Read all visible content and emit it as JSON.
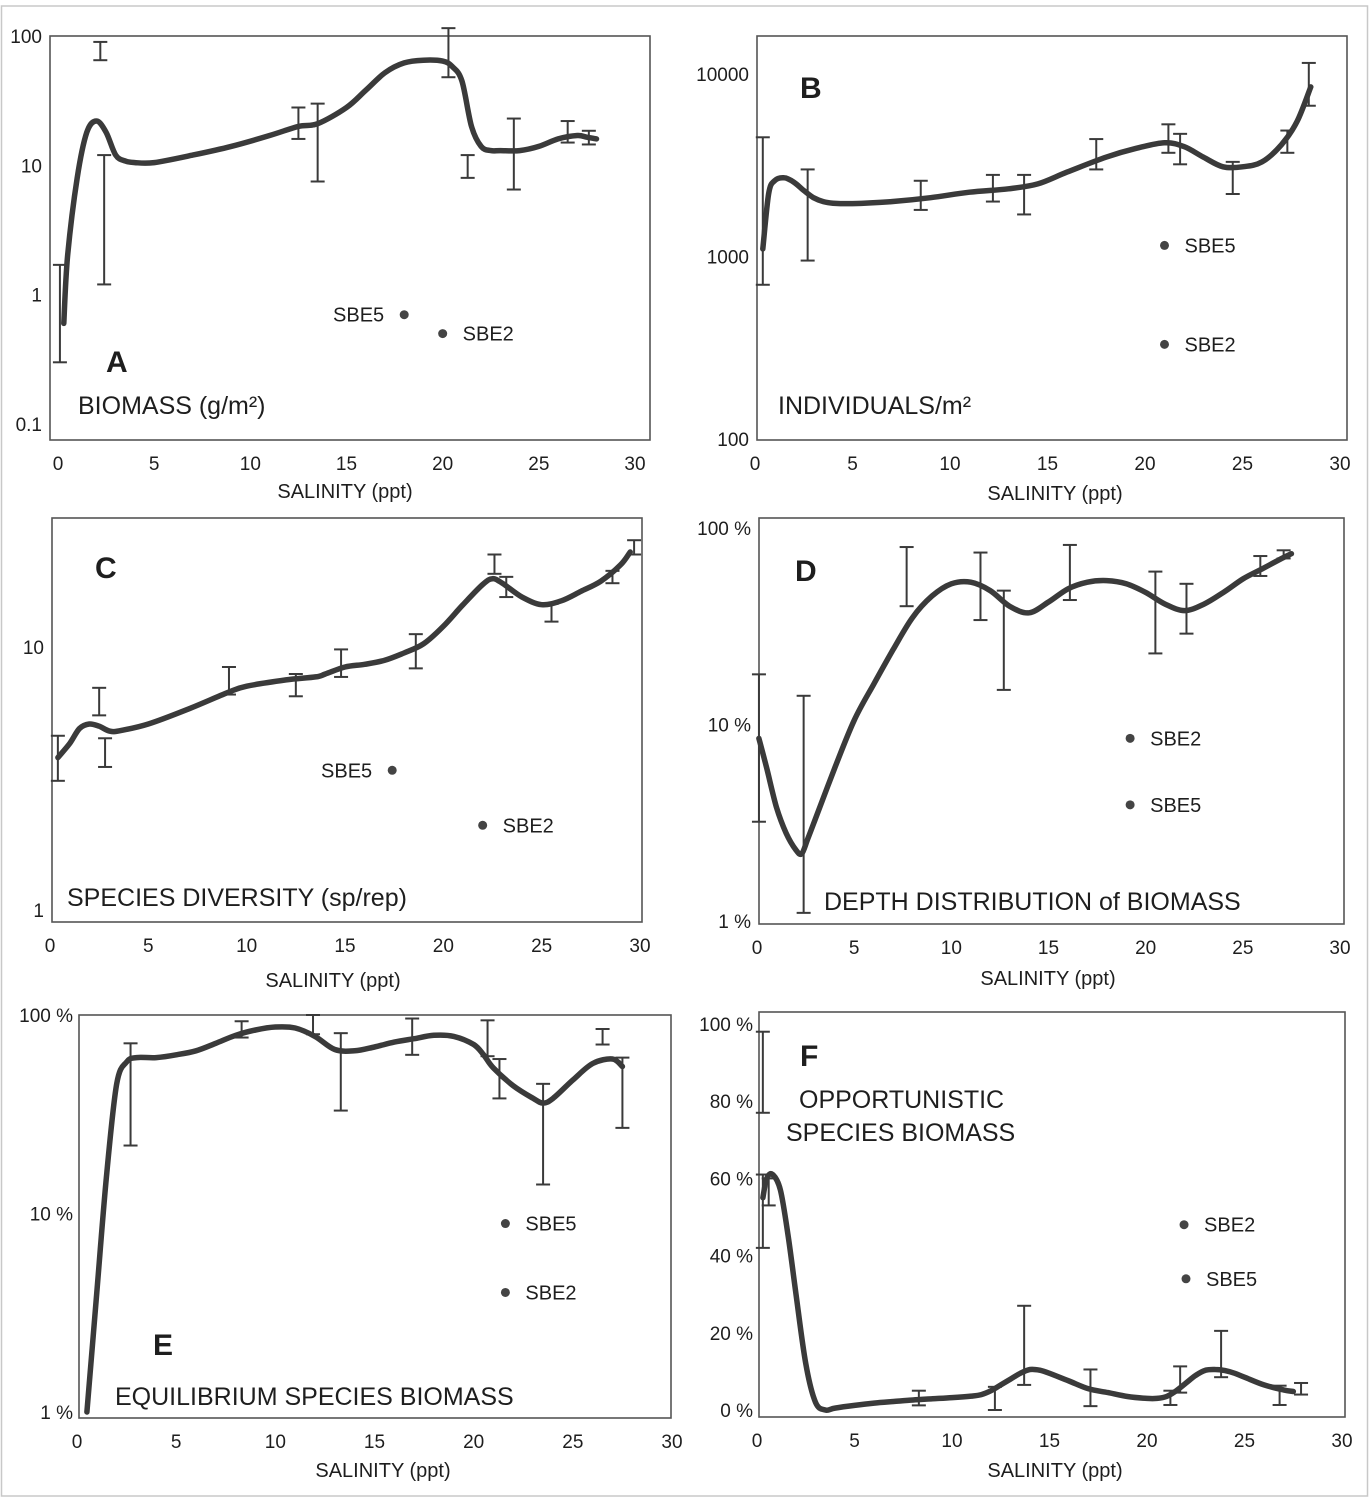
{
  "chart_data": [
    {
      "panel": "A",
      "type": "line",
      "title": "BIOMASS (g/m²)",
      "xlabel": "SALINITY (ppt)",
      "ylabel": "",
      "yscale": "log",
      "xlim": [
        0,
        30
      ],
      "ylim": [
        0.1,
        100
      ],
      "xticks": [
        0,
        5,
        10,
        15,
        20,
        25,
        30
      ],
      "yticks": [
        {
          "v": 0.1,
          "t": "0.1"
        },
        {
          "v": 1,
          "t": "1"
        },
        {
          "v": 10,
          "t": "10"
        },
        {
          "v": 100,
          "t": "100"
        }
      ],
      "curve": {
        "x": [
          0.3,
          0.5,
          1.0,
          1.5,
          2.0,
          2.5,
          3.0,
          3.5,
          4.0,
          5,
          7,
          9,
          11,
          12.5,
          13.5,
          15,
          16,
          17,
          18,
          19,
          20,
          20.5,
          21,
          21.5,
          22,
          22.5,
          23,
          24,
          25,
          26,
          27,
          27.5,
          28
        ],
        "y": [
          0.6,
          2.0,
          8.0,
          18,
          22,
          18,
          12,
          10.8,
          10.5,
          10.5,
          12,
          14,
          17,
          20,
          21,
          28,
          38,
          52,
          62,
          65,
          64,
          58,
          45,
          20,
          14,
          13,
          13,
          13,
          14,
          16,
          17,
          16.5,
          16
        ]
      },
      "error_bars": [
        {
          "x": 0.1,
          "low": 0.3,
          "high": 1.7
        },
        {
          "x": 2.2,
          "low": 65,
          "high": 90
        },
        {
          "x": 2.4,
          "low": 1.2,
          "high": 12
        },
        {
          "x": 12.5,
          "low": 16,
          "high": 28
        },
        {
          "x": 13.5,
          "low": 7.5,
          "high": 30
        },
        {
          "x": 20.3,
          "low": 48,
          "high": 115
        },
        {
          "x": 21.3,
          "low": 8,
          "high": 12
        },
        {
          "x": 23.7,
          "low": 6.5,
          "high": 23
        },
        {
          "x": 26.5,
          "low": 15,
          "high": 22
        },
        {
          "x": 27.6,
          "low": 14.5,
          "high": 18.5
        }
      ],
      "points": [
        {
          "label": "SBE5",
          "x": 18,
          "y": 0.7,
          "side": "left"
        },
        {
          "label": "SBE2",
          "x": 20,
          "y": 0.5,
          "side": "right"
        }
      ]
    },
    {
      "panel": "B",
      "type": "line",
      "title": "INDIVIDUALS/m²",
      "xlabel": "SALINITY (ppt)",
      "ylabel": "",
      "yscale": "log",
      "xlim": [
        0,
        30
      ],
      "ylim": [
        100,
        10000
      ],
      "xticks": [
        0,
        5,
        10,
        15,
        20,
        25,
        30
      ],
      "yticks": [
        {
          "v": 100,
          "t": "100"
        },
        {
          "v": 1000,
          "t": "1000"
        },
        {
          "v": 10000,
          "t": "10000"
        }
      ],
      "curve": {
        "x": [
          0.4,
          0.7,
          1.0,
          1.5,
          2.0,
          2.5,
          3.0,
          3.5,
          4,
          5,
          7,
          9,
          11,
          13,
          14.5,
          16,
          18,
          19.5,
          21,
          22,
          23,
          24,
          25,
          26,
          27,
          27.8,
          28.5
        ],
        "y": [
          1100,
          2200,
          2600,
          2700,
          2550,
          2300,
          2100,
          2000,
          1960,
          1950,
          2000,
          2100,
          2250,
          2350,
          2500,
          2900,
          3500,
          3900,
          4200,
          4000,
          3500,
          3100,
          3100,
          3300,
          4100,
          5500,
          8500
        ]
      },
      "error_bars": [
        {
          "x": 0.4,
          "low": 700,
          "high": 4500
        },
        {
          "x": 2.7,
          "low": 950,
          "high": 3000
        },
        {
          "x": 8.5,
          "low": 1800,
          "high": 2600
        },
        {
          "x": 12.2,
          "low": 2000,
          "high": 2800
        },
        {
          "x": 13.8,
          "low": 1700,
          "high": 2800
        },
        {
          "x": 17.5,
          "low": 3000,
          "high": 4400
        },
        {
          "x": 21.2,
          "low": 3700,
          "high": 5300
        },
        {
          "x": 21.8,
          "low": 3200,
          "high": 4700
        },
        {
          "x": 24.5,
          "low": 2200,
          "high": 3300
        },
        {
          "x": 27.3,
          "low": 3700,
          "high": 4900
        },
        {
          "x": 28.4,
          "low": 6700,
          "high": 11500
        }
      ],
      "points": [
        {
          "label": "SBE5",
          "x": 21,
          "y": 1150,
          "side": "right"
        },
        {
          "label": "SBE2",
          "x": 21,
          "y": 330,
          "side": "right"
        }
      ]
    },
    {
      "panel": "C",
      "type": "line",
      "title": "SPECIES DIVERSITY (sp/rep)",
      "xlabel": "SALINITY (ppt)",
      "ylabel": "",
      "yscale": "log",
      "xlim": [
        0,
        30
      ],
      "ylim": [
        1,
        26
      ],
      "xticks": [
        0,
        5,
        10,
        15,
        20,
        25,
        30
      ],
      "yticks": [
        {
          "v": 1,
          "t": "1"
        },
        {
          "v": 10,
          "t": "10"
        }
      ],
      "curve": {
        "x": [
          0.4,
          1.0,
          1.5,
          2.0,
          2.5,
          3.0,
          3.5,
          5,
          7,
          9,
          10,
          12,
          13.5,
          14,
          15,
          16,
          17,
          18,
          19,
          20,
          21,
          22,
          22.5,
          23,
          24,
          25,
          26,
          27,
          28,
          29,
          29.5
        ],
        "y": [
          3.8,
          4.3,
          4.9,
          5.1,
          5.0,
          4.8,
          4.8,
          5.1,
          5.8,
          6.7,
          7.1,
          7.5,
          7.7,
          7.9,
          8.4,
          8.6,
          8.9,
          9.5,
          10.3,
          12,
          14.5,
          17.3,
          18.2,
          17.5,
          15.5,
          14.5,
          15,
          16.3,
          17.8,
          20.5,
          23
        ]
      },
      "error_bars": [
        {
          "x": 0.4,
          "low": 3.1,
          "high": 4.6
        },
        {
          "x": 2.5,
          "low": 5.5,
          "high": 7.0
        },
        {
          "x": 2.8,
          "low": 3.5,
          "high": 4.5
        },
        {
          "x": 9.1,
          "low": 6.6,
          "high": 8.4
        },
        {
          "x": 12.5,
          "low": 6.5,
          "high": 7.9
        },
        {
          "x": 14.8,
          "low": 7.7,
          "high": 9.8
        },
        {
          "x": 18.6,
          "low": 8.3,
          "high": 11.2
        },
        {
          "x": 22.6,
          "low": 19,
          "high": 22.5
        },
        {
          "x": 23.2,
          "low": 15.5,
          "high": 18.5
        },
        {
          "x": 25.5,
          "low": 12.5,
          "high": 14.6
        },
        {
          "x": 28.6,
          "low": 17.5,
          "high": 19.5
        },
        {
          "x": 29.7,
          "low": 22.5,
          "high": 25.5
        }
      ],
      "points": [
        {
          "label": "SBE5",
          "x": 17.4,
          "y": 3.4,
          "side": "left"
        },
        {
          "label": "SBE2",
          "x": 22,
          "y": 2.1,
          "side": "right"
        }
      ]
    },
    {
      "panel": "D",
      "type": "line",
      "title": "DEPTH DISTRIBUTION of BIOMASS",
      "xlabel": "SALINITY (ppt)",
      "ylabel": "",
      "yscale": "log",
      "xlim": [
        0,
        30
      ],
      "ylim": [
        1,
        100
      ],
      "xticks": [
        0,
        5,
        10,
        15,
        20,
        25,
        30
      ],
      "yticks": [
        {
          "v": 1,
          "t": "1 %"
        },
        {
          "v": 10,
          "t": "10 %"
        },
        {
          "v": 100,
          "t": "100 %"
        }
      ],
      "curve": {
        "x": [
          0.1,
          0.5,
          1.0,
          1.5,
          2.0,
          2.3,
          2.6,
          3.0,
          4,
          5,
          6,
          7,
          8,
          9,
          10,
          11,
          12,
          13,
          14,
          15,
          16,
          17,
          18,
          19,
          20,
          21,
          22,
          23,
          24,
          25,
          26,
          27,
          27.5
        ],
        "y": [
          8.5,
          6,
          3.8,
          2.8,
          2.3,
          2.2,
          2.6,
          3.3,
          6,
          10.5,
          16,
          24,
          35,
          45,
          52,
          53,
          48,
          40,
          37,
          42,
          49,
          53,
          54,
          52,
          47,
          41,
          38,
          41,
          47,
          55,
          62,
          70,
          74
        ]
      },
      "error_bars": [
        {
          "x": 0.1,
          "low": 3.2,
          "high": 18
        },
        {
          "x": 2.4,
          "low": 1.1,
          "high": 14
        },
        {
          "x": 7.7,
          "low": 40,
          "high": 80
        },
        {
          "x": 11.5,
          "low": 34,
          "high": 75
        },
        {
          "x": 12.7,
          "low": 15,
          "high": 48
        },
        {
          "x": 16.1,
          "low": 43,
          "high": 82
        },
        {
          "x": 20.5,
          "low": 23,
          "high": 60
        },
        {
          "x": 22.1,
          "low": 29,
          "high": 52
        },
        {
          "x": 25.9,
          "low": 57,
          "high": 72
        },
        {
          "x": 27.1,
          "low": 70,
          "high": 77
        }
      ],
      "points": [
        {
          "label": "SBE2",
          "x": 19.2,
          "y": 8.5,
          "side": "right"
        },
        {
          "label": "SBE5",
          "x": 19.2,
          "y": 3.9,
          "side": "right"
        }
      ]
    },
    {
      "panel": "E",
      "type": "line",
      "title": "EQUILIBRIUM SPECIES BIOMASS",
      "xlabel": "SALINITY (ppt)",
      "ylabel": "",
      "yscale": "log",
      "xlim": [
        0,
        30
      ],
      "ylim": [
        1,
        100
      ],
      "xticks": [
        0,
        5,
        10,
        15,
        20,
        25,
        30
      ],
      "yticks": [
        {
          "v": 1,
          "t": "1 %"
        },
        {
          "v": 10,
          "t": "10 %"
        },
        {
          "v": 100,
          "t": "100 %"
        }
      ],
      "curve": {
        "x": [
          0.5,
          1.0,
          1.5,
          2.0,
          2.5,
          3.0,
          4,
          5,
          6,
          7,
          8,
          9,
          10,
          11,
          12,
          13,
          14,
          15,
          16,
          17,
          18,
          19,
          20,
          20.5,
          21,
          22,
          23,
          23.5,
          24,
          25,
          26,
          27,
          27.5
        ],
        "y": [
          1,
          4,
          16,
          45,
          58,
          61,
          61,
          63,
          66,
          72,
          79,
          84,
          87,
          86,
          78,
          67,
          66,
          69,
          73,
          76,
          79,
          78,
          71,
          63,
          54,
          44,
          38,
          36,
          38,
          47,
          57,
          60,
          55
        ]
      },
      "error_bars": [
        {
          "x": 2.7,
          "low": 22,
          "high": 72
        },
        {
          "x": 8.3,
          "low": 77,
          "high": 93
        },
        {
          "x": 11.9,
          "low": 80,
          "high": 100
        },
        {
          "x": 13.3,
          "low": 33,
          "high": 81
        },
        {
          "x": 16.9,
          "low": 63,
          "high": 96
        },
        {
          "x": 20.7,
          "low": 62,
          "high": 94
        },
        {
          "x": 21.3,
          "low": 38,
          "high": 60
        },
        {
          "x": 23.5,
          "low": 14,
          "high": 45
        },
        {
          "x": 26.5,
          "low": 71,
          "high": 85
        },
        {
          "x": 27.5,
          "low": 27,
          "high": 61
        }
      ],
      "points": [
        {
          "label": "SBE5",
          "x": 21.6,
          "y": 8.9,
          "side": "right"
        },
        {
          "label": "SBE2",
          "x": 21.6,
          "y": 4.0,
          "side": "right"
        }
      ]
    },
    {
      "panel": "F",
      "type": "line",
      "title": [
        "OPPORTUNISTIC",
        "SPECIES BIOMASS"
      ],
      "xlabel": "SALINITY (ppt)",
      "ylabel": "",
      "yscale": "linear",
      "xlim": [
        0,
        30
      ],
      "ylim": [
        0,
        100
      ],
      "xticks": [
        0,
        5,
        10,
        15,
        20,
        25,
        30
      ],
      "yticks": [
        {
          "v": 0,
          "t": "0 %"
        },
        {
          "v": 20,
          "t": "20 %"
        },
        {
          "v": 40,
          "t": "40 %"
        },
        {
          "v": 60,
          "t": "60 %"
        },
        {
          "v": 80,
          "t": "80 %"
        },
        {
          "v": 100,
          "t": "100 %"
        }
      ],
      "curve": {
        "x": [
          0.3,
          0.5,
          0.8,
          1.2,
          1.6,
          2.0,
          2.5,
          3.0,
          3.5,
          4,
          5,
          6,
          7,
          8,
          9,
          10,
          11,
          11.5,
          12,
          12.5,
          13,
          13.5,
          14,
          14.5,
          15,
          16,
          17,
          18,
          19,
          20,
          20.5,
          21,
          21.5,
          22,
          22.5,
          23,
          23.5,
          24,
          24.5,
          25,
          26,
          27,
          27.5
        ],
        "y": [
          55,
          60,
          61,
          57,
          45,
          30,
          12,
          2,
          0,
          0.5,
          1.2,
          1.8,
          2.2,
          2.6,
          2.9,
          3.2,
          3.6,
          4,
          5,
          6.5,
          8,
          9.5,
          10.5,
          10.3,
          9.5,
          7.5,
          5.5,
          4.5,
          3.5,
          3,
          3,
          3.5,
          5,
          7,
          9,
          10.3,
          10.5,
          10.2,
          9.5,
          8.5,
          6.5,
          5.2,
          4.8
        ]
      },
      "error_bars": [
        {
          "x": 0.3,
          "low": 77,
          "high": 98
        },
        {
          "x": 0.3,
          "low": 42,
          "high": 61
        },
        {
          "x": 0.6,
          "low": 53,
          "high": 60
        },
        {
          "x": 8.3,
          "low": 1.2,
          "high": 5
        },
        {
          "x": 12.2,
          "low": 0,
          "high": 6
        },
        {
          "x": 13.7,
          "low": 6.5,
          "high": 27
        },
        {
          "x": 17.1,
          "low": 1,
          "high": 10.5
        },
        {
          "x": 21.2,
          "low": 1.3,
          "high": 5
        },
        {
          "x": 21.7,
          "low": 4.5,
          "high": 11.3
        },
        {
          "x": 23.8,
          "low": 8.5,
          "high": 20.5
        },
        {
          "x": 26.8,
          "low": 1.3,
          "high": 6.3
        },
        {
          "x": 27.9,
          "low": 4,
          "high": 7
        }
      ],
      "points": [
        {
          "label": "SBE2",
          "x": 21.9,
          "y": 48,
          "side": "right"
        },
        {
          "label": "SBE5",
          "x": 22.0,
          "y": 34,
          "side": "right"
        }
      ]
    }
  ]
}
